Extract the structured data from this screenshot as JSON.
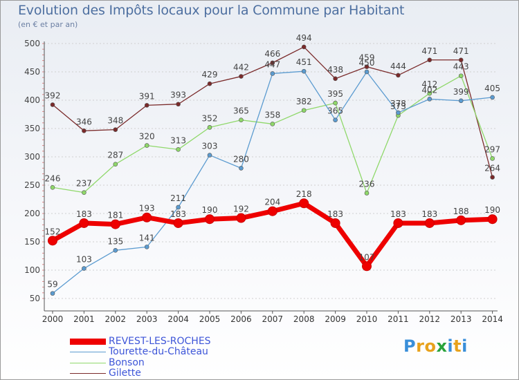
{
  "chart_data": {
    "type": "line",
    "title": "Evolution des Impôts locaux pour la Commune par Habitant",
    "subtitle": "(en € et par an)",
    "xlabel": "",
    "ylabel": "",
    "ylim": [
      50,
      500
    ],
    "yticks": [
      50,
      100,
      150,
      200,
      250,
      300,
      350,
      400,
      450,
      500
    ],
    "categories": [
      "2000",
      "2001",
      "2002",
      "2003",
      "2004",
      "2005",
      "2006",
      "2007",
      "2008",
      "2009",
      "2010",
      "2011",
      "2012",
      "2013",
      "2014"
    ],
    "grid": "horizontal dashed",
    "series": [
      {
        "name": "Gilette",
        "color": "#7a2a2a",
        "values": [
          392,
          346,
          348,
          391,
          393,
          429,
          442,
          466,
          494,
          438,
          459,
          444,
          471,
          471,
          264
        ]
      },
      {
        "name": "Bonson",
        "color": "#8fd86a",
        "values": [
          246,
          237,
          287,
          320,
          313,
          352,
          365,
          358,
          382,
          395,
          236,
          373,
          412,
          443,
          297
        ]
      },
      {
        "name": "Tourette-du-Château",
        "color": "#5b9bd0",
        "values": [
          59,
          103,
          135,
          141,
          211,
          303,
          280,
          447,
          451,
          365,
          450,
          378,
          402,
          399,
          405
        ]
      },
      {
        "name": "REVEST-LES-ROCHES",
        "color": "#ee0000",
        "values": [
          152,
          183,
          181,
          193,
          183,
          190,
          192,
          204,
          218,
          183,
          107,
          183,
          183,
          188,
          190
        ]
      }
    ],
    "legend": [
      {
        "name": "REVEST-LES-ROCHES",
        "color": "#ee0000",
        "text_color": "#3d55d8"
      },
      {
        "name": "Tourette-du-Château",
        "color": "#5b9bd0",
        "text_color": "#3d55d8"
      },
      {
        "name": "Bonson",
        "color": "#8fd86a",
        "text_color": "#3d55d8"
      },
      {
        "name": "Gilette",
        "color": "#7a2a2a",
        "text_color": "#3d55d8"
      }
    ]
  },
  "logo": {
    "text": "Proxiti",
    "letters": [
      {
        "ch": "P",
        "color": "#3a8fd9"
      },
      {
        "ch": "r",
        "color": "#e8a21c"
      },
      {
        "ch": "o",
        "color": "#e8a21c"
      },
      {
        "ch": "x",
        "color": "#2aa33b"
      },
      {
        "ch": "i",
        "color": "#3a8fd9"
      },
      {
        "ch": "t",
        "color": "#e8a21c"
      },
      {
        "ch": "i",
        "color": "#3a8fd9"
      }
    ]
  }
}
